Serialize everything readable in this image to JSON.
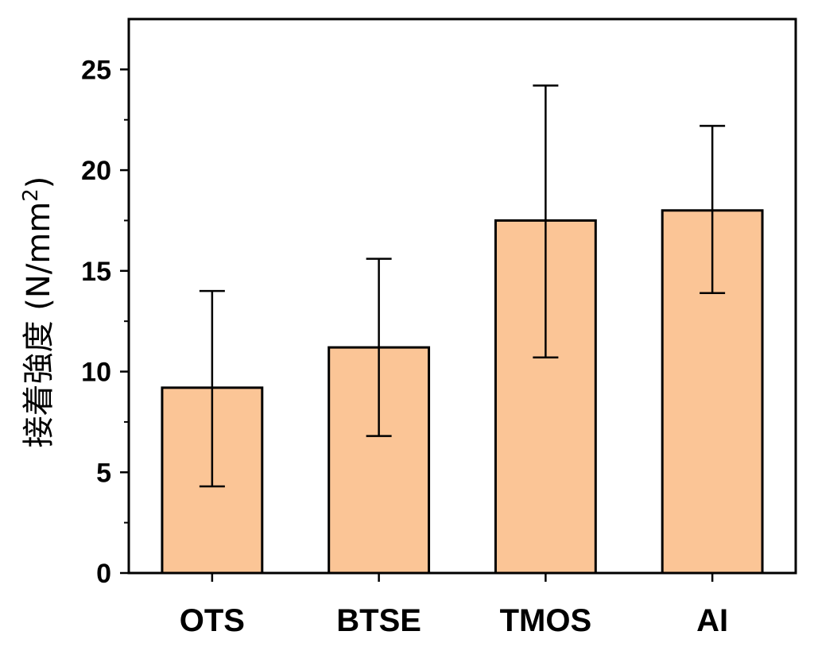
{
  "chart_data": {
    "type": "bar",
    "title": "",
    "xlabel": "",
    "ylabel": "接着強度 (N/mm²)",
    "ylabel_main": "接着強度 (N/mm",
    "ylabel_sup": "2",
    "ylabel_close": ")",
    "categories": [
      "OTS",
      "BTSE",
      "TMOS",
      "AI"
    ],
    "values": [
      9.2,
      11.2,
      17.5,
      18.0
    ],
    "error_high": [
      14.0,
      15.6,
      24.2,
      22.2
    ],
    "error_low": [
      4.3,
      6.8,
      10.7,
      13.9
    ],
    "ylim": [
      0,
      27.5
    ],
    "yticks": [
      0,
      5,
      10,
      15,
      20,
      25
    ],
    "yticks_labels": [
      "0",
      "5",
      "10",
      "15",
      "20",
      "25"
    ],
    "minor_step": 2.5,
    "grid": false,
    "bar_color": "#FBC596",
    "edge_color": "#000000"
  }
}
